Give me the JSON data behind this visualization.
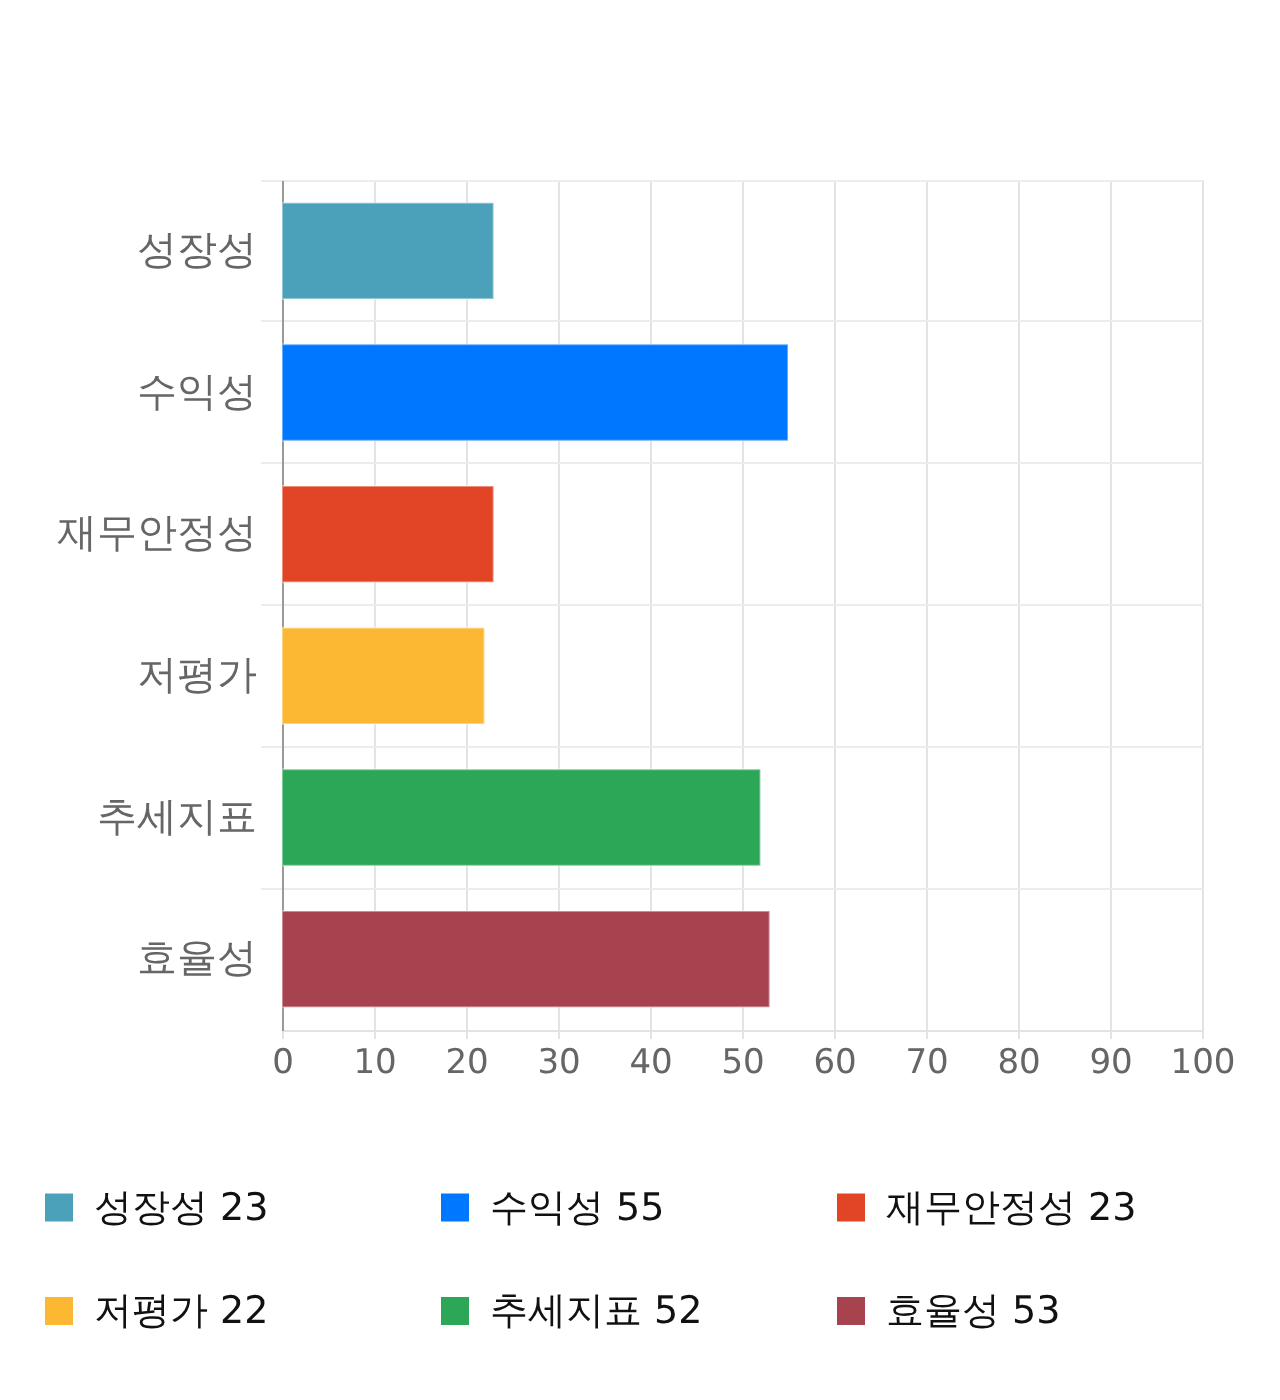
{
  "chart_data": {
    "type": "bar",
    "orientation": "horizontal",
    "stacked": true,
    "categories": [
      "성장성",
      "수익성",
      "재무안정성",
      "저평가",
      "추세지표",
      "효율성"
    ],
    "series": [
      {
        "name": "성장성 23",
        "color": "#4ba1ba",
        "values": [
          23,
          null,
          null,
          null,
          null,
          null
        ]
      },
      {
        "name": "수익성 55",
        "color": "#0077ff",
        "values": [
          null,
          55,
          null,
          null,
          null,
          null
        ]
      },
      {
        "name": "재무안정성 23",
        "color": "#e14525",
        "values": [
          null,
          null,
          23,
          null,
          null,
          null
        ]
      },
      {
        "name": "저평가 22",
        "color": "#fdb833",
        "values": [
          null,
          null,
          null,
          22,
          null,
          null
        ]
      },
      {
        "name": "추세지표 52",
        "color": "#2ba757",
        "values": [
          null,
          null,
          null,
          null,
          52,
          null
        ]
      },
      {
        "name": "효율성 53",
        "color": "#a7424f",
        "values": [
          null,
          null,
          null,
          null,
          null,
          53
        ]
      }
    ],
    "xlim": [
      0,
      100
    ],
    "xticks": [
      0,
      10,
      20,
      30,
      40,
      50,
      60,
      70,
      80,
      90,
      100
    ],
    "grid": true,
    "legend": "bottom"
  }
}
